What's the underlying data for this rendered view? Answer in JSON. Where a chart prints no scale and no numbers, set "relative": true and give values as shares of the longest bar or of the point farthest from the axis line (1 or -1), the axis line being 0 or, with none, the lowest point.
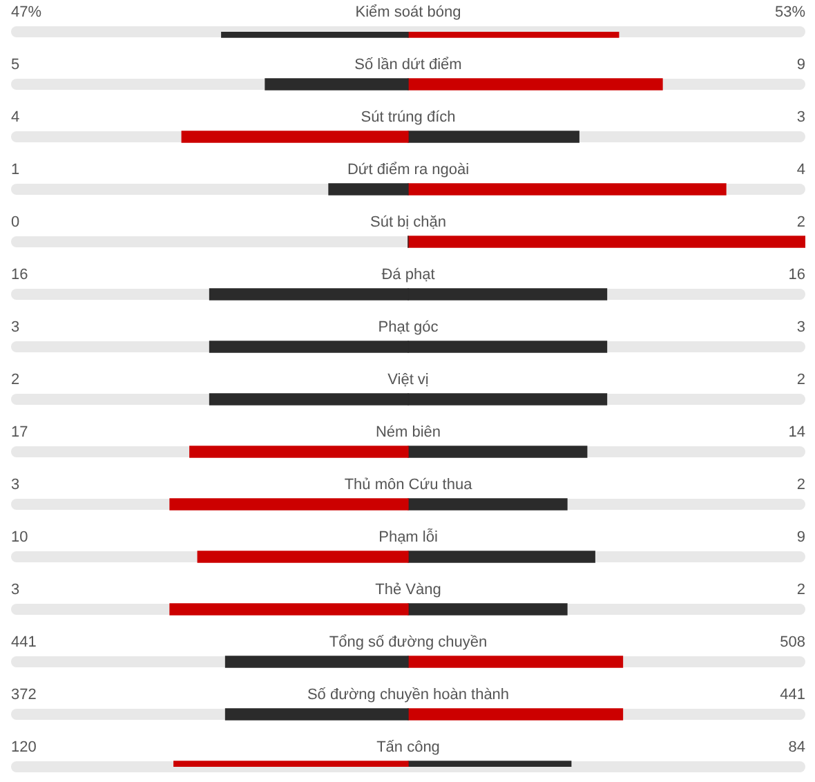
{
  "chart_data": {
    "type": "bar",
    "orientation": "horizontal",
    "stacked": true,
    "relative": true,
    "categories": [
      "Kiểm soát bóng",
      "Số lần dứt điểm",
      "Sút trúng đích",
      "Dứt điểm ra ngoài",
      "Sút bị chặn",
      "Đá phạt",
      "Phạt góc",
      "Việt vị",
      "Ném biên",
      "Thủ môn Cứu thua",
      "Phạm lỗi",
      "Thẻ Vàng",
      "Tổng số đường chuyền",
      "Số đường chuyền hoàn thành",
      "Tấn công"
    ],
    "series": [
      {
        "values": [
          -0.47,
          -0.36,
          -0.57,
          -0.2,
          0,
          -0.5,
          -0.5,
          -0.5,
          -0.55,
          -0.6,
          -0.53,
          -0.6,
          -0.46,
          -0.46,
          -0.59
        ],
        "colors": [
          "#2b2b2b",
          "#2b2b2b",
          "#cc0000",
          "#2b2b2b",
          "#2b2b2b",
          "#2b2b2b",
          "#2b2b2b",
          "#2b2b2b",
          "#cc0000",
          "#cc0000",
          "#cc0000",
          "#cc0000",
          "#2b2b2b",
          "#2b2b2b",
          "#cc0000"
        ]
      },
      {
        "values": [
          0.53,
          0.64,
          0.43,
          0.8,
          1,
          0.5,
          0.5,
          0.5,
          0.45,
          0.4,
          0.47,
          0.4,
          0.54,
          0.54,
          0.41
        ],
        "colors": [
          "#cc0000",
          "#cc0000",
          "#2b2b2b",
          "#cc0000",
          "#cc0000",
          "#2b2b2b",
          "#2b2b2b",
          "#2b2b2b",
          "#2b2b2b",
          "#2b2b2b",
          "#2b2b2b",
          "#2b2b2b",
          "#cc0000",
          "#cc0000",
          "#2b2b2b"
        ]
      }
    ],
    "annotations": [
      "47%",
      "53%",
      "5",
      "9",
      "4",
      "3",
      "1",
      "4",
      "0",
      "2",
      "16",
      "16",
      "3",
      "3",
      "2",
      "2",
      "17",
      "14",
      "3",
      "2",
      "10",
      "9",
      "3",
      "2",
      "441",
      "508",
      "372",
      "441",
      "120",
      "84"
    ]
  }
}
